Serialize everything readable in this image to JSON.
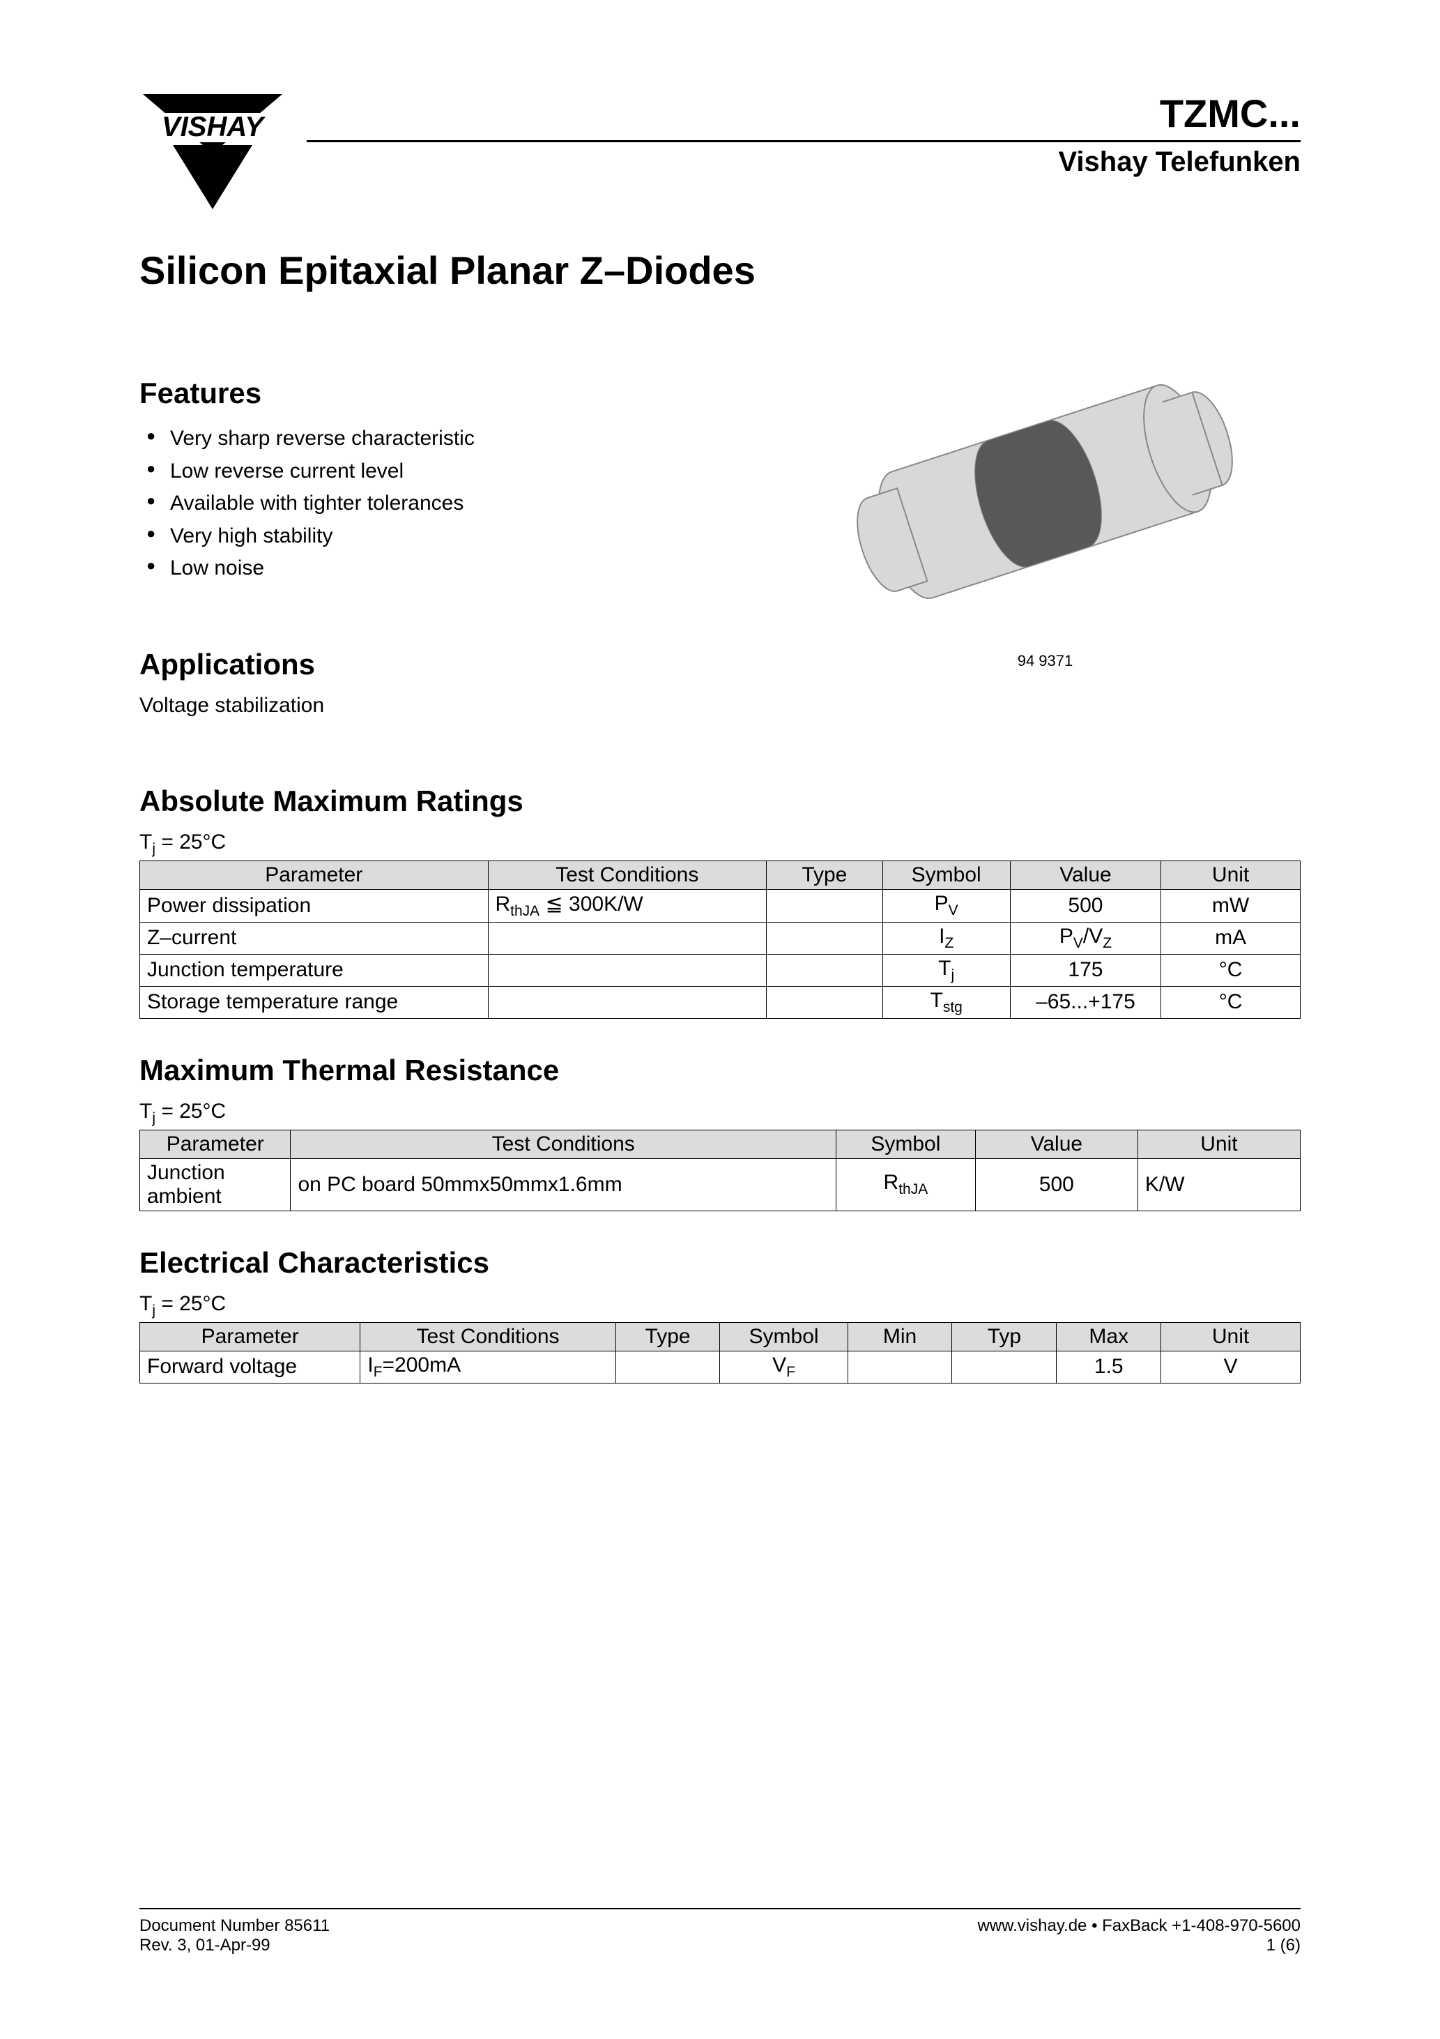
{
  "header": {
    "product_code": "TZMC...",
    "brand_line": "Vishay Telefunken",
    "main_title": "Silicon Epitaxial Planar Z–Diodes"
  },
  "features": {
    "heading": "Features",
    "items": [
      "Very sharp reverse characteristic",
      "Low reverse current level",
      "Available with tighter tolerances",
      "Very high stability",
      "Low noise"
    ]
  },
  "applications": {
    "heading": "Applications",
    "text": "Voltage stabilization"
  },
  "image": {
    "caption": "94 9371",
    "body_fill": "#d8d8d8",
    "band_fill": "#585858",
    "stroke": "#888888"
  },
  "abs_max": {
    "heading": "Absolute Maximum Ratings",
    "condition": "Tj = 25°C",
    "headers": [
      "Parameter",
      "Test Conditions",
      "Type",
      "Symbol",
      "Value",
      "Unit"
    ],
    "rows": [
      {
        "param": "Power dissipation",
        "cond": "RthJA ≦ 300K/W",
        "type": "",
        "sym": "P",
        "sym_sub": "V",
        "val": "500",
        "unit": "mW"
      },
      {
        "param": "Z–current",
        "cond": "",
        "type": "",
        "sym": "I",
        "sym_sub": "Z",
        "val": "PV /VZ",
        "unit": "mA",
        "val_html": "P<span class='sub'>V</span>/V<span class='sub'>Z</span>"
      },
      {
        "param": "Junction temperature",
        "cond": "",
        "type": "",
        "sym": "T",
        "sym_sub": "j",
        "val": "175",
        "unit": "°C"
      },
      {
        "param": "Storage temperature range",
        "cond": "",
        "type": "",
        "sym": "T",
        "sym_sub": "stg",
        "val": "–65...+175",
        "unit": "°C"
      }
    ]
  },
  "thermal": {
    "heading": "Maximum Thermal Resistance",
    "condition": "Tj = 25°C",
    "headers": [
      "Parameter",
      "Test Conditions",
      "Symbol",
      "Value",
      "Unit"
    ],
    "rows": [
      {
        "param": "Junction ambient",
        "cond": "on PC board 50mmx50mmx1.6mm",
        "sym": "R",
        "sym_sub": "thJA",
        "val": "500",
        "unit": "K/W"
      }
    ]
  },
  "electrical": {
    "heading": "Electrical Characteristics",
    "condition": "Tj = 25°C",
    "headers": [
      "Parameter",
      "Test Conditions",
      "Type",
      "Symbol",
      "Min",
      "Typ",
      "Max",
      "Unit"
    ],
    "rows": [
      {
        "param": "Forward voltage",
        "cond": "IF=200mA",
        "type": "",
        "sym": "V",
        "sym_sub": "F",
        "min": "",
        "typ": "",
        "max": "1.5",
        "unit": "V",
        "cond_html": "I<span class='sub'>F</span>=200mA"
      }
    ]
  },
  "footer": {
    "doc_num": "Document Number 85611",
    "rev": "Rev. 3, 01-Apr-99",
    "url": "www.vishay.de • FaxBack +1-408-970-5600",
    "page": "1 (6)"
  },
  "col_widths": {
    "abs_max": [
      "30%",
      "24%",
      "10%",
      "11%",
      "13%",
      "12%"
    ],
    "thermal": [
      "13%",
      "47%",
      "12%",
      "14%",
      "14%"
    ],
    "electrical": [
      "19%",
      "22%",
      "9%",
      "11%",
      "9%",
      "9%",
      "9%",
      "12%"
    ]
  }
}
